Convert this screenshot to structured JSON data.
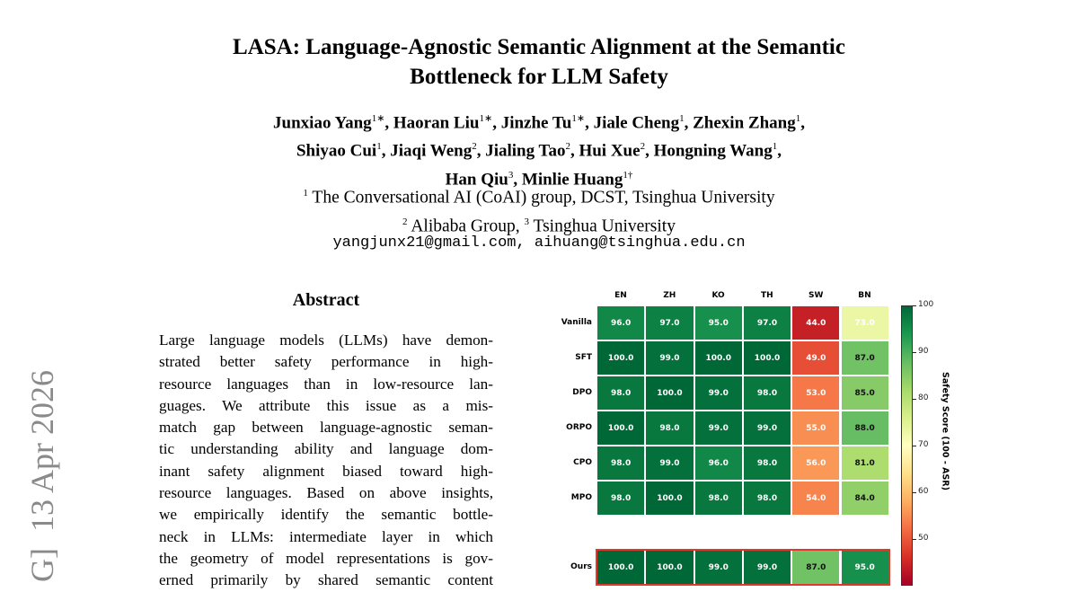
{
  "paper": {
    "title_lines": [
      "LASA: Language-Agnostic Semantic Alignment at the Semantic",
      "Bottleneck for LLM Safety"
    ],
    "authors": [
      {
        "name": "Junxiao Yang",
        "mark": "1∗"
      },
      {
        "name": "Haoran Liu",
        "mark": "1∗"
      },
      {
        "name": "Jinzhe Tu",
        "mark": "1∗"
      },
      {
        "name": "Jiale Cheng",
        "mark": "1"
      },
      {
        "name": "Zhexin Zhang",
        "mark": "1"
      },
      {
        "name": "Shiyao Cui",
        "mark": "1"
      },
      {
        "name": "Jiaqi Weng",
        "mark": "2"
      },
      {
        "name": "Jialing Tao",
        "mark": "2"
      },
      {
        "name": "Hui Xue",
        "mark": "2"
      },
      {
        "name": "Hongning Wang",
        "mark": "1"
      },
      {
        "name": "Han Qiu",
        "mark": "3"
      },
      {
        "name": "Minlie Huang",
        "mark": "1†"
      }
    ],
    "affiliations": [
      {
        "mark": "1",
        "text": " The Conversational AI (CoAI) group, DCST, Tsinghua University"
      },
      {
        "mark": "2",
        "text": " Alibaba Group, "
      },
      {
        "mark": "3",
        "text": " Tsinghua University"
      }
    ],
    "email": "yangjunx21@gmail.com, aihuang@tsinghua.edu.cn",
    "arxiv_stamp": "G]  13 Apr 2026",
    "abstract_heading": "Abstract",
    "abstract_lines": [
      "Large language models (LLMs) have demon-",
      "strated better safety performance in high-",
      "resource languages than in low-resource lan-",
      "guages.  We attribute this issue as a mis-",
      "match gap between language-agnostic seman-",
      "tic understanding ability and language dom-",
      "inant safety alignment biased toward high-",
      "resource languages. Based on above insights,",
      "we empirically identify the semantic bottle-",
      "neck in LLMs:  intermediate layer in which",
      "the geometry of model representations is gov-",
      "erned primarily by shared semantic content"
    ]
  },
  "chart_data": {
    "type": "heatmap",
    "columns": [
      "EN",
      "ZH",
      "KO",
      "TH",
      "SW",
      "BN"
    ],
    "rows": [
      "Vanilla",
      "SFT",
      "DPO",
      "ORPO",
      "CPO",
      "MPO",
      "Ours"
    ],
    "values": [
      [
        96.0,
        97.0,
        95.0,
        97.0,
        44.0,
        73.0
      ],
      [
        100.0,
        99.0,
        100.0,
        100.0,
        49.0,
        87.0
      ],
      [
        98.0,
        100.0,
        99.0,
        98.0,
        53.0,
        85.0
      ],
      [
        100.0,
        98.0,
        99.0,
        99.0,
        55.0,
        88.0
      ],
      [
        98.0,
        99.0,
        96.0,
        98.0,
        56.0,
        81.0
      ],
      [
        98.0,
        100.0,
        98.0,
        98.0,
        54.0,
        84.0
      ],
      [
        100.0,
        100.0,
        99.0,
        99.0,
        87.0,
        95.0
      ]
    ],
    "highlighted_row": "Ours",
    "highlight_color": "#e0392b",
    "colormap": "RdYlGn",
    "colorbar_range": [
      40,
      100
    ],
    "colorbar_ticks": [
      "50",
      "60",
      "70",
      "80",
      "90",
      "100"
    ],
    "colorbar_label": "Safety Score (100 - ASR)"
  }
}
